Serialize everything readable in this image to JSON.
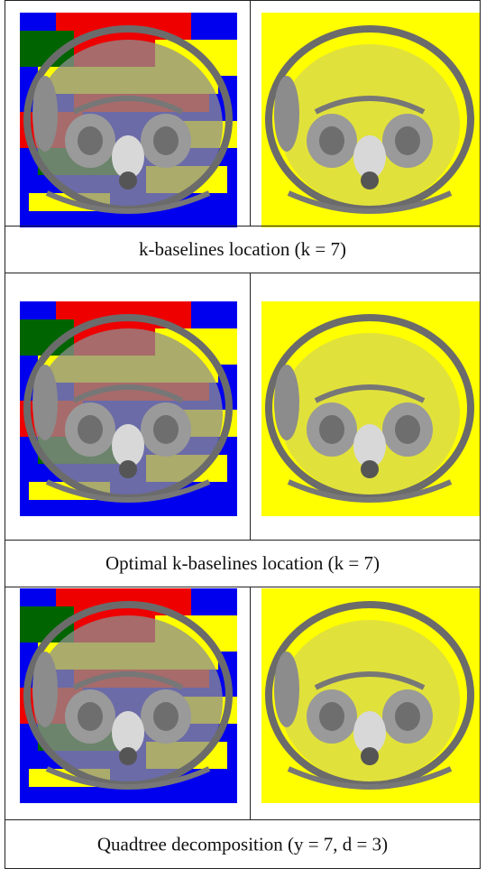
{
  "figure": {
    "rows": [
      {
        "caption": "k-baselines location (k = 7)"
      },
      {
        "caption": "Optimal k-baselines location (k = 7)"
      },
      {
        "caption": "Quadtree decomposition (y = 7, d = 3)"
      }
    ]
  }
}
